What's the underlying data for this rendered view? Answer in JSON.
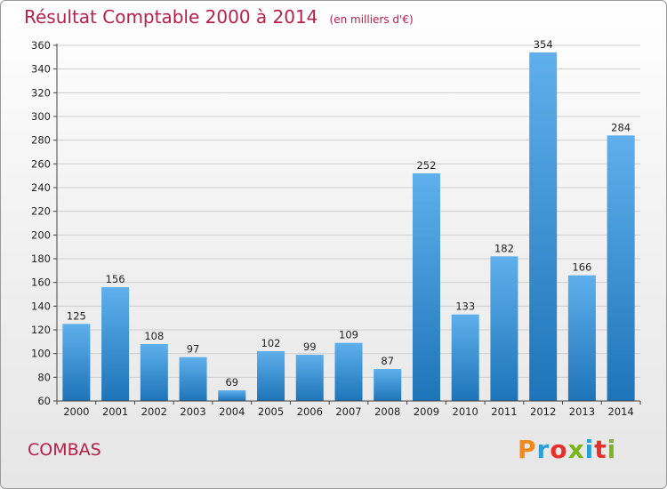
{
  "title": "Résultat Comptable 2000 à 2014",
  "subtitle": "(en milliers d'€)",
  "commune": "COMBAS",
  "logo": {
    "text": "Proxiti",
    "colors": [
      "#f08a1c",
      "#2aa0d8",
      "#e8302a",
      "#7ab51d",
      "#2aa0d8",
      "#e8302a",
      "#7ab51d"
    ]
  },
  "colors": {
    "bar_top": "#5fb0ec",
    "bar_bottom": "#1e74b8",
    "title": "#b8204a"
  },
  "chart_data": {
    "type": "bar",
    "categories": [
      "2000",
      "2001",
      "2002",
      "2003",
      "2004",
      "2005",
      "2006",
      "2007",
      "2008",
      "2009",
      "2010",
      "2011",
      "2012",
      "2013",
      "2014"
    ],
    "values": [
      125,
      156,
      108,
      97,
      69,
      102,
      99,
      109,
      87,
      252,
      133,
      182,
      354,
      166,
      284
    ],
    "ylim": [
      60,
      360
    ],
    "yticks": [
      60,
      80,
      100,
      120,
      140,
      160,
      180,
      200,
      220,
      240,
      260,
      280,
      300,
      320,
      340,
      360
    ],
    "grid": true,
    "xlabel": "",
    "ylabel": ""
  }
}
